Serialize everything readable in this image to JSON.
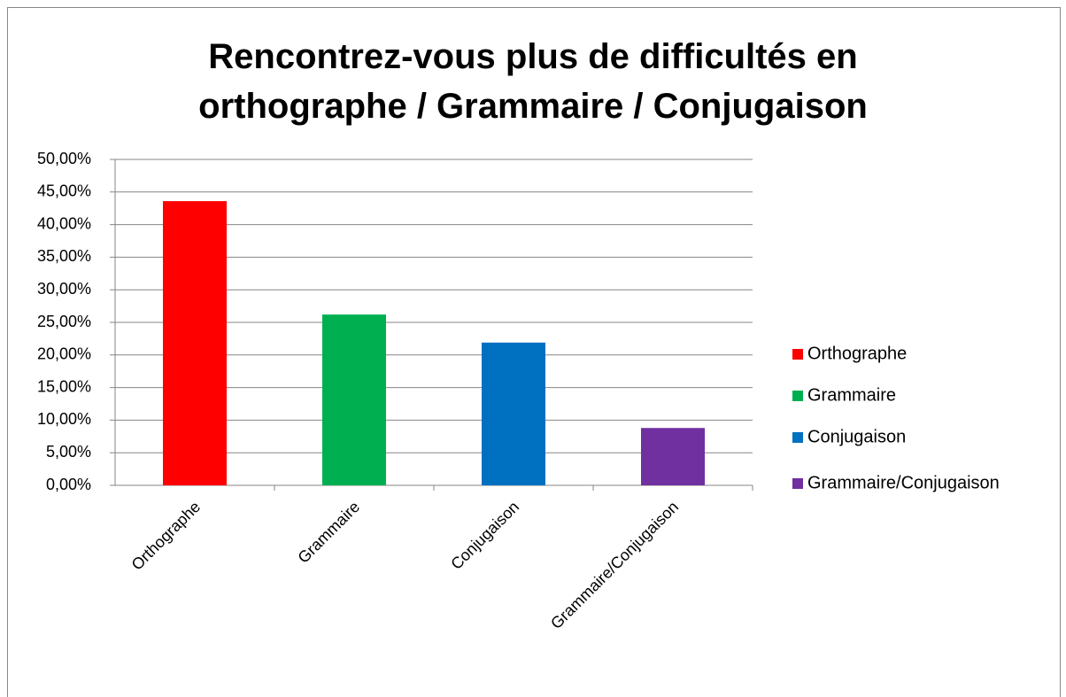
{
  "chart_data": {
    "type": "bar",
    "title": "Rencontrez-vous plus de difficultés en orthographe / Grammaire / Conjugaison",
    "categories": [
      "Orthographe",
      "Grammaire",
      "Conjugaison",
      "Grammaire/Conjugaison"
    ],
    "values": [
      43.6,
      26.2,
      21.9,
      8.8
    ],
    "colors": [
      "#ff0000",
      "#00b050",
      "#0070c0",
      "#7030a0"
    ],
    "ylim": [
      0,
      50
    ],
    "yticks": [
      {
        "value": 0,
        "label": "0,00%"
      },
      {
        "value": 5,
        "label": "5,00%"
      },
      {
        "value": 10,
        "label": "10,00%"
      },
      {
        "value": 15,
        "label": "15,00%"
      },
      {
        "value": 20,
        "label": "20,00%"
      },
      {
        "value": 25,
        "label": "25,00%"
      },
      {
        "value": 30,
        "label": "30,00%"
      },
      {
        "value": 35,
        "label": "35,00%"
      },
      {
        "value": 40,
        "label": "40,00%"
      },
      {
        "value": 45,
        "label": "45,00%"
      },
      {
        "value": 50,
        "label": "50,00%"
      }
    ],
    "grid": true,
    "legend": "right"
  }
}
